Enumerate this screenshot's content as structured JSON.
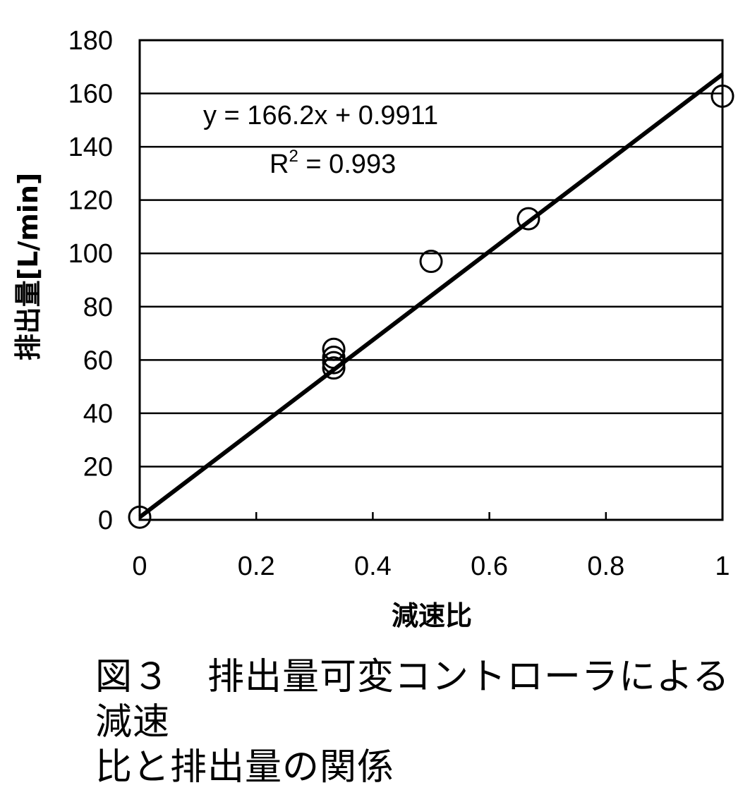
{
  "caption": {
    "line1": "図３　排出量可変コントローラによる減速",
    "line2": "比と排出量の関係"
  },
  "chart_data": {
    "type": "scatter",
    "title": "",
    "xlabel": "減速比",
    "ylabel": "排出量[L/min]",
    "xlim": [
      0,
      1
    ],
    "ylim": [
      0,
      180
    ],
    "x_ticks": [
      0,
      0.2,
      0.4,
      0.6,
      0.8,
      1
    ],
    "x_tick_labels": [
      "0",
      "0.2",
      "0.4",
      "0.6",
      "0.8",
      "1"
    ],
    "y_ticks": [
      0,
      20,
      40,
      60,
      80,
      100,
      120,
      140,
      160,
      180
    ],
    "y_tick_labels": [
      "0",
      "20",
      "40",
      "60",
      "80",
      "100",
      "120",
      "140",
      "160",
      "180"
    ],
    "grid": "horizontal",
    "legend": "none",
    "marker": "open-circle",
    "points": [
      {
        "x": 0,
        "y": 1
      },
      {
        "x": 0.333,
        "y": 57
      },
      {
        "x": 0.333,
        "y": 59
      },
      {
        "x": 0.333,
        "y": 61
      },
      {
        "x": 0.333,
        "y": 64
      },
      {
        "x": 0.5,
        "y": 97
      },
      {
        "x": 0.667,
        "y": 113
      },
      {
        "x": 1,
        "y": 159
      }
    ],
    "trendline": {
      "slope": 166.2,
      "intercept": 0.9911,
      "equation_label": "y = 166.2x + 0.9911",
      "r2_prefix": "R",
      "r2_exponent": "2",
      "r2_value_label": " = 0.993"
    }
  }
}
